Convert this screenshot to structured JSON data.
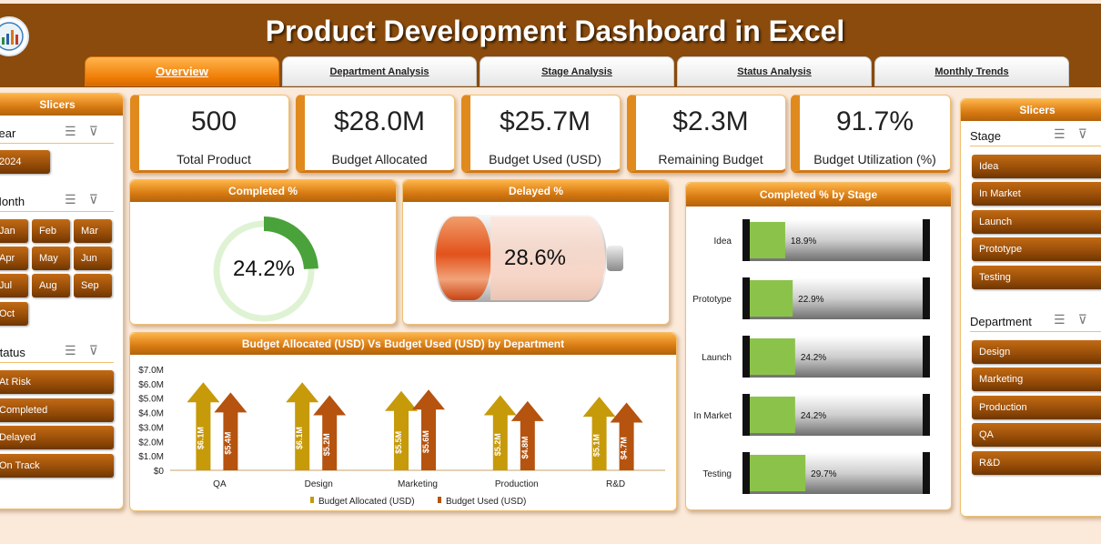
{
  "app": {
    "title": "Product Development Dashboard in Excel"
  },
  "tabs": [
    "Overview",
    "Department Analysis",
    "Stage Analysis",
    "Status Analysis",
    "Monthly Trends"
  ],
  "left_slicers": {
    "title": "Slicers",
    "year": {
      "label": "Year",
      "items": [
        "2024"
      ]
    },
    "month": {
      "label": "Month",
      "items": [
        "Jan",
        "Feb",
        "Mar",
        "Apr",
        "May",
        "Jun",
        "Jul",
        "Aug",
        "Sep",
        "Oct"
      ]
    },
    "status": {
      "label": "Status",
      "items": [
        "At Risk",
        "Completed",
        "Delayed",
        "On Track"
      ]
    }
  },
  "kpis": [
    {
      "value": "500",
      "label": "Total Product"
    },
    {
      "value": "$28.0M",
      "label": "Budget Allocated"
    },
    {
      "value": "$25.7M",
      "label": "Budget Used (USD)"
    },
    {
      "value": "$2.3M",
      "label": "Remaining Budget"
    },
    {
      "value": "91.7%",
      "label": "Budget Utilization (%)"
    }
  ],
  "completed": {
    "title": "Completed %",
    "value_label": "24.2%",
    "value": 0.242
  },
  "delayed": {
    "title": "Delayed %",
    "value_label": "28.6%",
    "value": 0.286
  },
  "right_slicers": {
    "title": "Slicers",
    "stage": {
      "label": "Stage",
      "items": [
        "Idea",
        "In Market",
        "Launch",
        "Prototype",
        "Testing"
      ]
    },
    "department": {
      "label": "Department",
      "items": [
        "Design",
        "Marketing",
        "Production",
        "QA",
        "R&D"
      ]
    }
  },
  "colors": {
    "allocated": "#c79a0a",
    "used": "#b5530f",
    "progress": "#8bc34a",
    "accent": "#e08a1e"
  },
  "icons": {
    "multiselect": "multi-select-icon",
    "clear_filter": "clear-filter-icon"
  },
  "chart_data": [
    {
      "type": "bar",
      "title": "Budget Allocated (USD) Vs Budget Used (USD) by Department",
      "categories": [
        "QA",
        "Design",
        "Marketing",
        "Production",
        "R&D"
      ],
      "series": [
        {
          "name": "Budget Allocated (USD)",
          "values": [
            6.1,
            6.1,
            5.5,
            5.2,
            5.1
          ],
          "labels": [
            "$6.1M",
            "$6.1M",
            "$5.5M",
            "$5.2M",
            "$5.1M"
          ]
        },
        {
          "name": "Budget Used (USD)",
          "values": [
            5.4,
            5.2,
            5.6,
            4.8,
            4.7
          ],
          "labels": [
            "$5.4M",
            "$5.2M",
            "$5.6M",
            "$4.8M",
            "$4.7M"
          ]
        }
      ],
      "ylim": [
        0,
        7
      ],
      "yticks": [
        "$0",
        "$1.0M",
        "$2.0M",
        "$3.0M",
        "$4.0M",
        "$5.0M",
        "$6.0M",
        "$7.0M"
      ],
      "grid": false,
      "legend": "bottom"
    },
    {
      "type": "bar",
      "title": "Completed % by Stage",
      "categories": [
        "Idea",
        "Prototype",
        "Launch",
        "In Market",
        "Testing"
      ],
      "values": [
        18.9,
        22.9,
        24.2,
        24.2,
        29.7
      ],
      "labels": [
        "18.9%",
        "22.9%",
        "24.2%",
        "24.2%",
        "29.7%"
      ],
      "xlim": [
        0,
        100
      ]
    }
  ]
}
